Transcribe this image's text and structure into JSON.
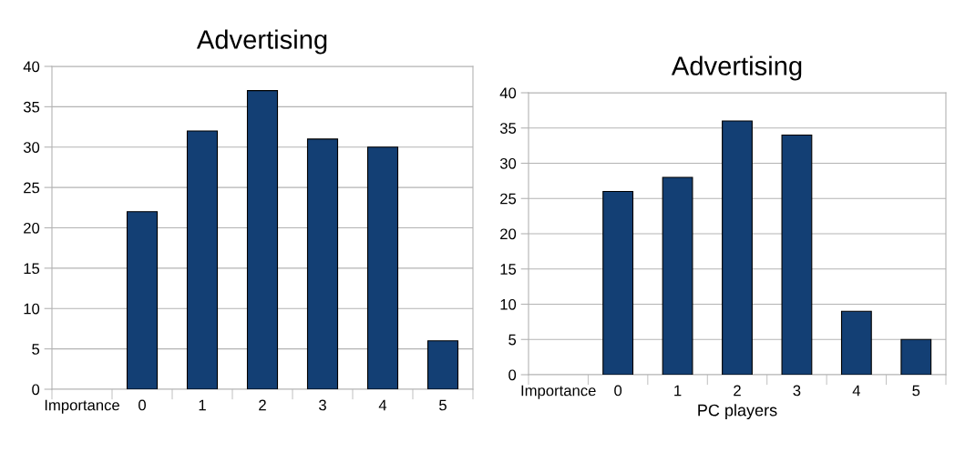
{
  "chart_data": [
    {
      "type": "bar",
      "title": "Advertising",
      "categories": [
        "Importance",
        "0",
        "1",
        "2",
        "3",
        "4",
        "5"
      ],
      "values": [
        null,
        22,
        32,
        37,
        31,
        30,
        6
      ],
      "color": "#133f74",
      "ylim": [
        0,
        40
      ],
      "yticks": [
        0,
        5,
        10,
        15,
        20,
        25,
        30,
        35,
        40
      ],
      "grid": "y",
      "legend": false
    },
    {
      "type": "bar",
      "title": "Advertising",
      "xlabel": "PC players",
      "categories": [
        "Importance",
        "0",
        "1",
        "2",
        "3",
        "4",
        "5"
      ],
      "values": [
        null,
        26,
        28,
        36,
        34,
        9,
        5
      ],
      "color": "#133f74",
      "ylim": [
        0,
        40
      ],
      "yticks": [
        0,
        5,
        10,
        15,
        20,
        25,
        30,
        35,
        40
      ],
      "grid": "y",
      "legend": false
    }
  ]
}
